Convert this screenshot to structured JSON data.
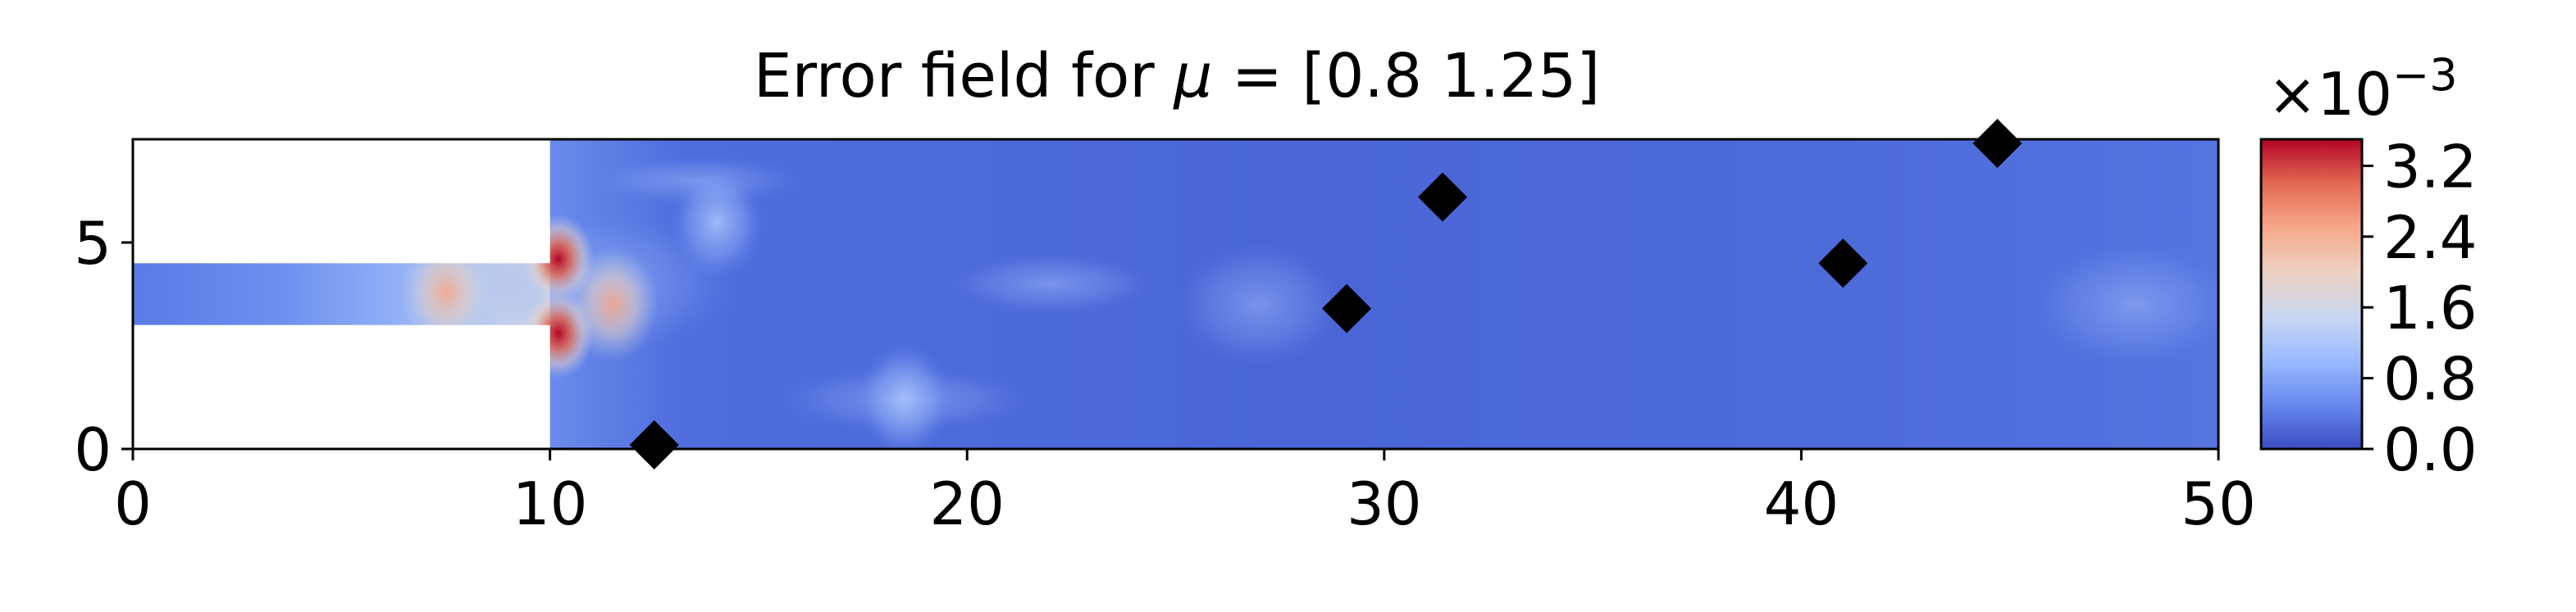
{
  "chart_data": {
    "type": "heatmap",
    "title": "Error field for μ = [0.8  1.25]",
    "title_prefix": "Error field for ",
    "title_mu": "μ",
    "title_suffix": " = [0.8  1.25]",
    "xlabel": "",
    "ylabel": "",
    "xlim": [
      0,
      50
    ],
    "ylim": [
      0,
      7.5
    ],
    "x_ticks": [
      0,
      10,
      20,
      30,
      40,
      50
    ],
    "x_tick_labels": [
      "0",
      "10",
      "20",
      "30",
      "40",
      "50"
    ],
    "y_ticks": [
      0,
      5
    ],
    "y_tick_labels": [
      "0",
      "5"
    ],
    "grid": false,
    "colormap": "coolwarm",
    "colormap_stops": [
      "#3b4cc0",
      "#6788ee",
      "#9abbff",
      "#c9d7f0",
      "#edd1c2",
      "#f7a889",
      "#e26952",
      "#b40426"
    ],
    "colorbar": {
      "range": [
        0,
        0.0035
      ],
      "ticks": [
        0.0,
        0.8,
        1.6,
        2.4,
        3.2
      ],
      "tick_labels": [
        "0.0",
        "0.8",
        "1.6",
        "2.4",
        "3.2"
      ],
      "multiplier_base": "×10",
      "multiplier_exp": "−3"
    },
    "domain": {
      "inlet_channel": {
        "x": [
          0,
          10
        ],
        "y": [
          3.0,
          4.5
        ]
      },
      "main_chamber": {
        "x": [
          10,
          50
        ],
        "y": [
          0,
          7.5
        ]
      }
    },
    "sensor_points": [
      {
        "x": 12.5,
        "y": 0.1
      },
      {
        "x": 29.1,
        "y": 3.4
      },
      {
        "x": 31.4,
        "y": 6.1
      },
      {
        "x": 41.0,
        "y": 4.5
      },
      {
        "x": 44.7,
        "y": 7.4
      }
    ],
    "error_hotspots": [
      {
        "x": 10.2,
        "y": 2.8,
        "value": 3.3
      },
      {
        "x": 10.2,
        "y": 4.6,
        "value": 2.2
      },
      {
        "x": 7.5,
        "y": 3.8,
        "value": 1.6
      },
      {
        "x": 11.5,
        "y": 3.5,
        "value": 1.5
      },
      {
        "x": 18.5,
        "y": 1.2,
        "value": 1.0
      },
      {
        "x": 14.0,
        "y": 5.5,
        "value": 0.7
      }
    ]
  }
}
